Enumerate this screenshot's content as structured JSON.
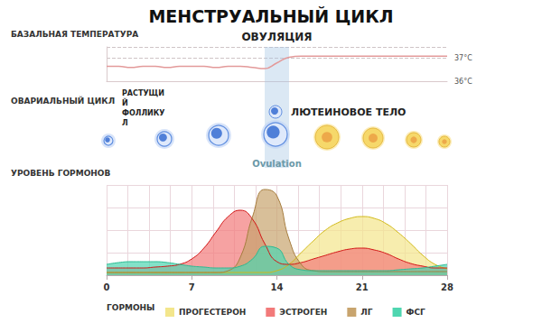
{
  "title": "МЕНСТРУАЛЬНЫЙ ЦИКЛ",
  "chart_data": [
    {
      "type": "line",
      "title": "БАЗАЛЬНАЯ ТЕМПЕРАТУРА",
      "x": [
        0,
        1,
        2,
        3,
        4,
        5,
        6,
        7,
        8,
        9,
        10,
        11,
        12,
        13,
        14,
        15,
        16,
        17,
        18,
        19,
        20,
        21,
        22,
        23,
        24,
        25,
        26,
        27,
        28
      ],
      "values": [
        36.65,
        36.65,
        36.6,
        36.65,
        36.65,
        36.6,
        36.65,
        36.65,
        36.65,
        36.6,
        36.65,
        36.65,
        36.6,
        36.55,
        36.8,
        37.05,
        37.1,
        37.1,
        37.1,
        37.1,
        37.1,
        37.1,
        37.1,
        37.1,
        37.1,
        37.1,
        37.1,
        37.1,
        37.1
      ],
      "color": "#e39a9a",
      "xlim": [
        0,
        28
      ],
      "ylim": [
        36,
        37.5
      ],
      "yticks": [
        {
          "value": 36,
          "label": "36°C"
        },
        {
          "value": 37,
          "label": "37°C"
        }
      ],
      "grid": true,
      "tick_labels": "y",
      "annotation": {
        "text": "ОВУЛЯЦИЯ",
        "x_range": [
          13,
          15
        ]
      }
    },
    {
      "type": "area",
      "title": "УРОВЕНЬ ГОРМОНОВ",
      "x": [
        0,
        1,
        2,
        3,
        4,
        5,
        6,
        7,
        8,
        9,
        10,
        11,
        12,
        13,
        14,
        15,
        16,
        17,
        18,
        19,
        20,
        21,
        22,
        23,
        24,
        25,
        26,
        27,
        28
      ],
      "series": [
        {
          "name": "ПРОГЕСТЕРОН",
          "color": "#f3e68c",
          "values": [
            3,
            3,
            3,
            3,
            3,
            3,
            3,
            3,
            3,
            3,
            3,
            3,
            3,
            3,
            5,
            12,
            25,
            38,
            50,
            58,
            63,
            65,
            63,
            57,
            47,
            35,
            22,
            12,
            7
          ]
        },
        {
          "name": "ЭСТРОГЕН",
          "color": "#f27a7a",
          "values": [
            8,
            8,
            8,
            8,
            9,
            10,
            12,
            18,
            30,
            48,
            65,
            72,
            62,
            35,
            15,
            12,
            14,
            18,
            22,
            26,
            29,
            30,
            28,
            24,
            18,
            13,
            10,
            8,
            8
          ]
        },
        {
          "name": "ЛГ",
          "color": "#c8a46e",
          "values": [
            3,
            3,
            3,
            3,
            3,
            3,
            3,
            3,
            3,
            3,
            5,
            20,
            65,
            95,
            88,
            40,
            12,
            5,
            4,
            4,
            4,
            4,
            4,
            4,
            4,
            4,
            4,
            4,
            4
          ]
        },
        {
          "name": "ФСГ",
          "color": "#4fd6b0",
          "values": [
            12,
            14,
            15,
            15,
            15,
            14,
            12,
            10,
            9,
            8,
            8,
            10,
            18,
            32,
            30,
            12,
            6,
            5,
            5,
            5,
            5,
            5,
            5,
            5,
            6,
            7,
            8,
            10,
            12
          ]
        }
      ],
      "xlim": [
        0,
        28
      ],
      "xticks": [
        0,
        7,
        14,
        21,
        28
      ],
      "ylim": [
        0,
        100
      ],
      "yticks": [
        0,
        25,
        50,
        75,
        100
      ],
      "grid": true,
      "tick_labels": "x",
      "legend": "bottom",
      "legend_title": "ГОРМОНЫ"
    }
  ],
  "ovarian_cycle": {
    "title": "ОВАРИАЛЬНЫЙ ЦИКЛ",
    "growing_label": "РАСТУЩИЙ ФОЛЛИКУЛ",
    "corpus_label": "ЛЮТЕИНОВОЕ ТЕЛО",
    "ovulation_label": "Ovulation"
  }
}
